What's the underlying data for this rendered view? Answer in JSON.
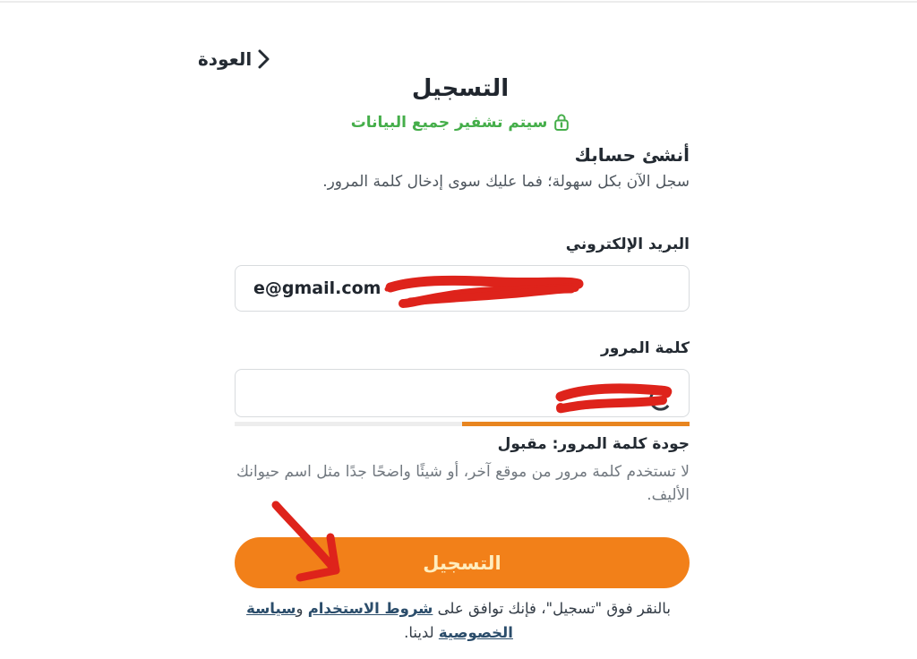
{
  "header": {
    "back_label": "العودة"
  },
  "title": "التسجيل",
  "encryption_note": {
    "text": "سيتم تشفير جميع البيانات",
    "color": "#45ae4a",
    "icon": "lock-icon"
  },
  "intro": {
    "heading": "أنشئ حسابك",
    "subtitle": "سجل الآن بكل سهولة؛ فما عليك سوى إدخال كلمة المرور."
  },
  "form": {
    "email": {
      "label": "البريد الإلكتروني",
      "visible_value": "e@gmail.com",
      "redacted": true
    },
    "password": {
      "label": "كلمة المرور",
      "value_redacted": true,
      "strength_percent": 50,
      "strength_fill_color": "#e8851f",
      "strength_track_color": "#ededed",
      "quality_text": "جودة كلمة المرور: مقبول",
      "hint": "لا تستخدم كلمة مرور من موقع آخر، أو شيئًا واضحًا جدًا مثل اسم حيوانك الأليف."
    },
    "submit_label": "التسجيل"
  },
  "footer": {
    "agreement_prefix": "بالنقر فوق \"تسجيل\"، فإنك توافق على ",
    "terms_link": "شروط الاستخدام",
    "conjunction": " و",
    "privacy_link": "سياسة الخصوصية",
    "agreement_suffix": " لدينا."
  },
  "colors": {
    "button_orange": "#f28019",
    "button_label": "#ffedbe",
    "annotation_red": "#de231b",
    "link_blue": "#2b4d6b",
    "green": "#45ae4a"
  }
}
